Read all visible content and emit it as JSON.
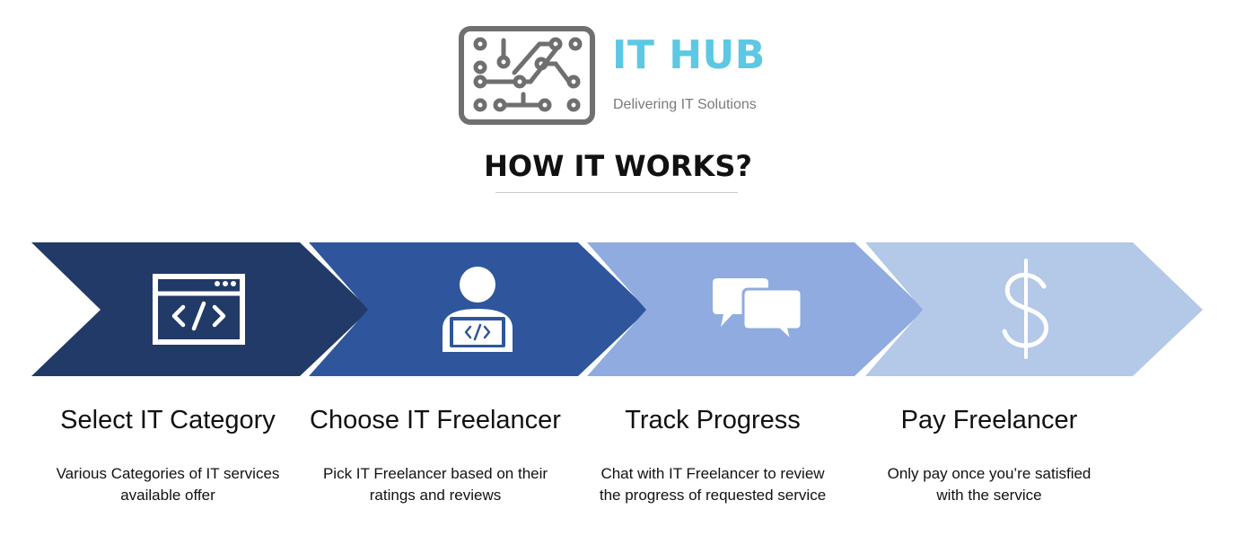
{
  "brand": {
    "name": "IT HUB",
    "tagline": "Delivering IT Solutions",
    "icon": "circuit-board-icon",
    "accent_color": "#5cc8e3"
  },
  "heading": "HOW IT WORKS?",
  "steps": [
    {
      "title": "Select IT Category",
      "description": "Various Categories of IT services available offer",
      "icon": "code-window-icon",
      "color": "#223a68"
    },
    {
      "title": "Choose IT Freelancer",
      "description": "Pick IT Freelancer based on their ratings and reviews",
      "icon": "developer-laptop-icon",
      "color": "#2f569c"
    },
    {
      "title": "Track Progress",
      "description": "Chat with IT Freelancer to review the progress of requested service",
      "icon": "chat-bubbles-icon",
      "color": "#8fabdf"
    },
    {
      "title": "Pay Freelancer",
      "description": "Only pay once you’re satisfied with the service",
      "icon": "dollar-icon",
      "color": "#b4c8e8"
    }
  ]
}
